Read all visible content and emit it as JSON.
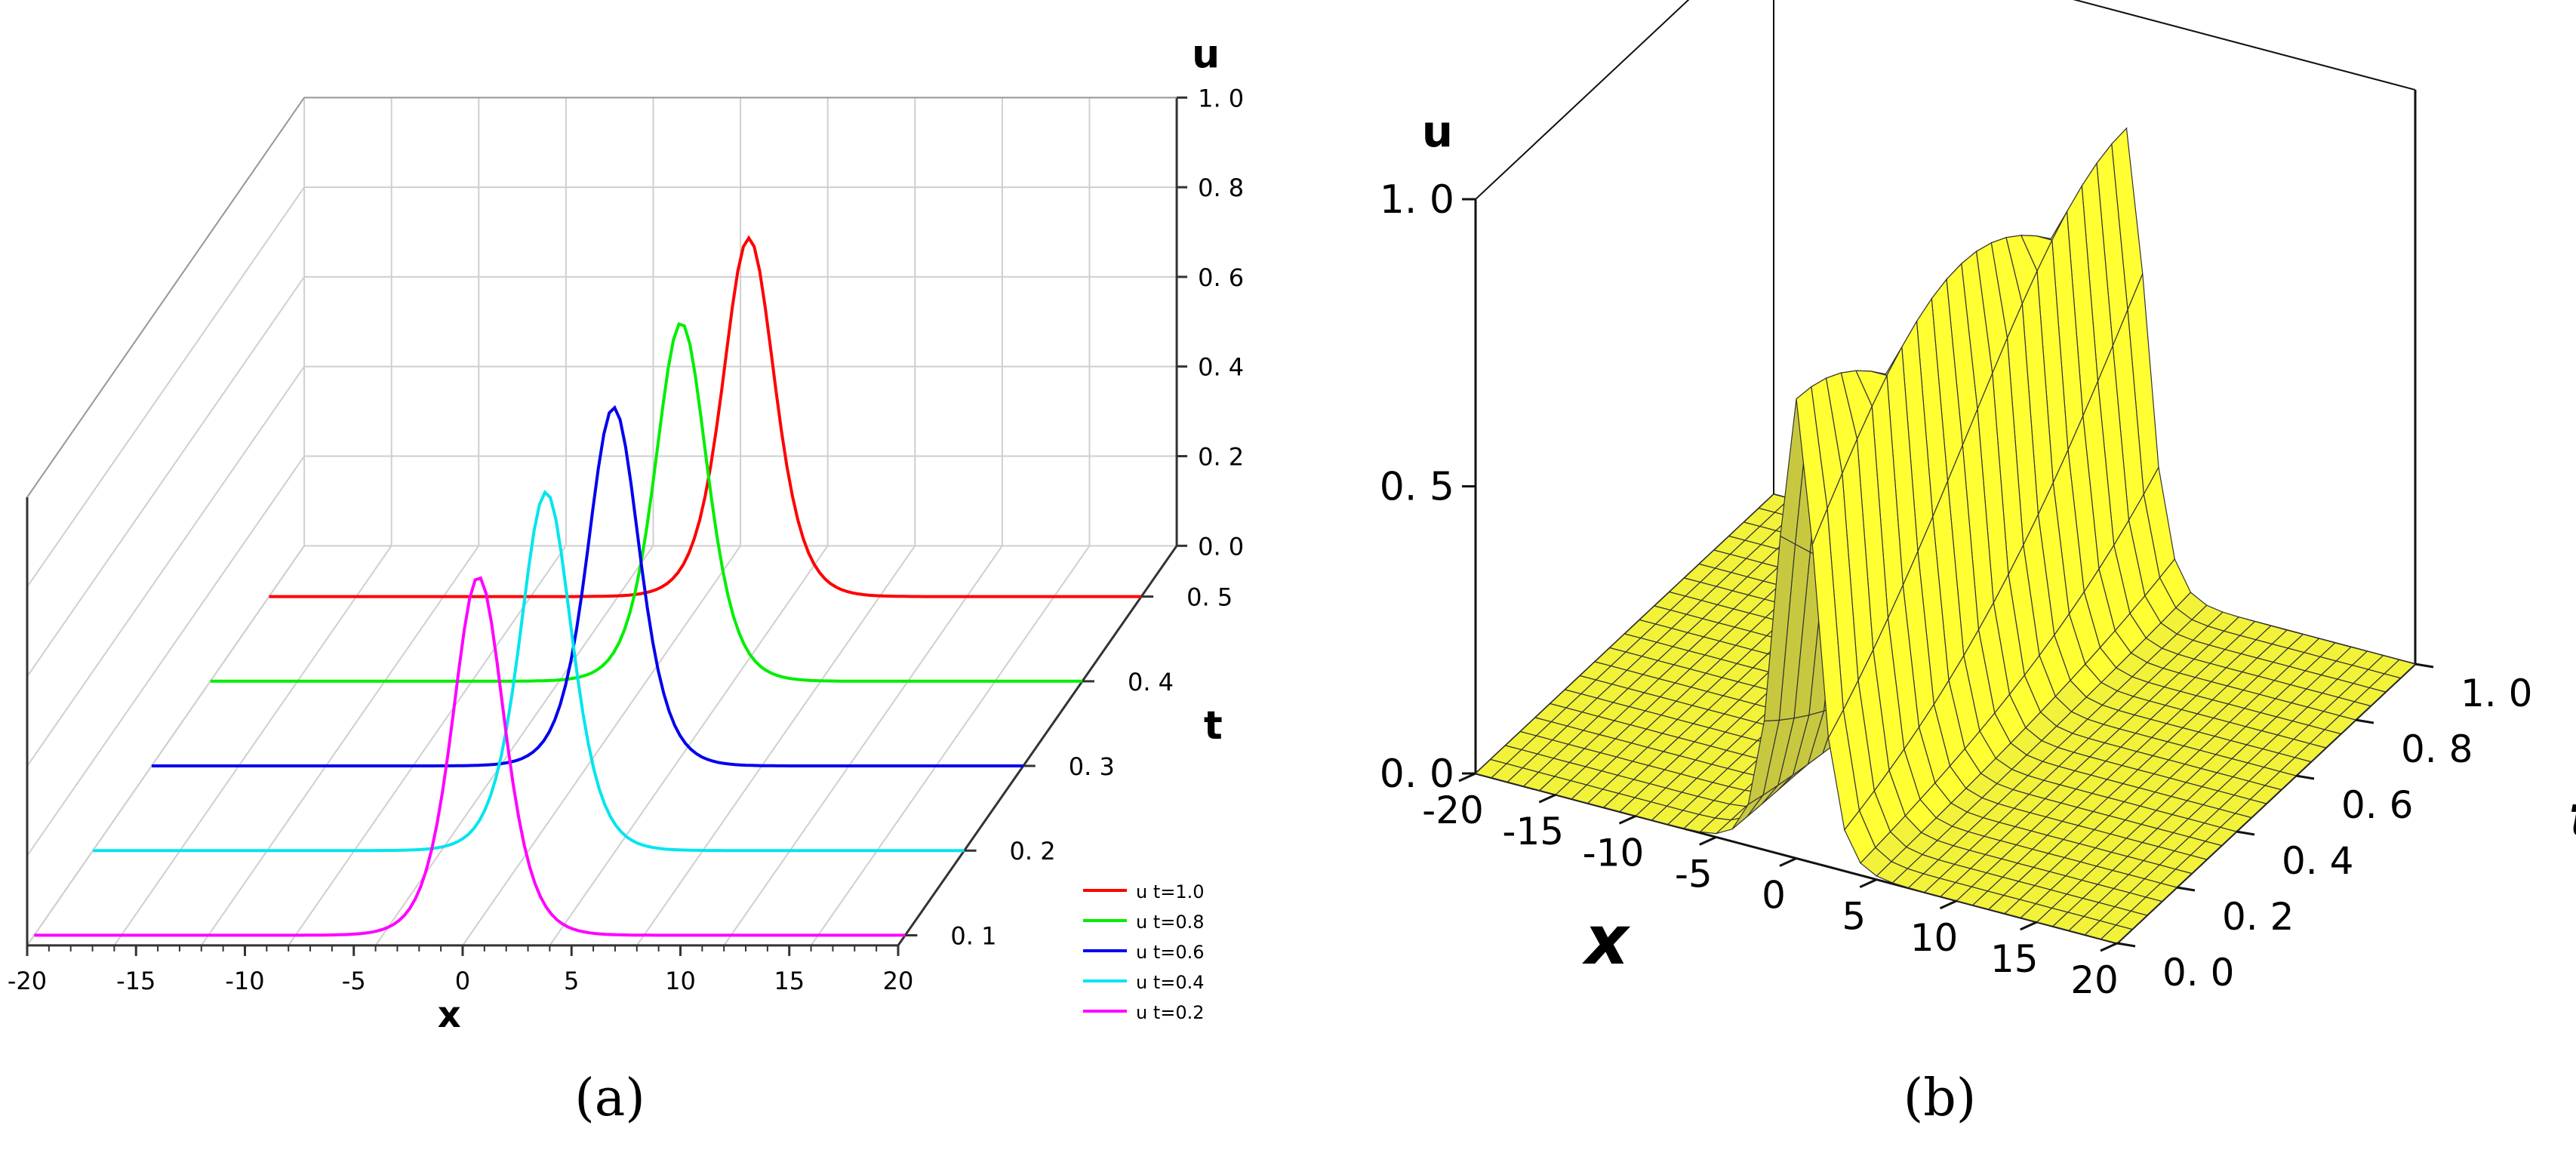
{
  "panel_labels": {
    "a": "(a)",
    "b": "(b)"
  },
  "chart_data": [
    {
      "panel": "a",
      "type": "line",
      "xlabel": "x",
      "ylabel": "t",
      "zlabel": "u",
      "xlim": [
        -20,
        20
      ],
      "zlim": [
        0,
        1.0
      ],
      "x_ticks": [
        -20,
        -15,
        -10,
        -5,
        0,
        5,
        10,
        15,
        20
      ],
      "x_tick_labels": [
        "-20",
        "-15",
        "-10",
        "-5",
        "0",
        "5",
        "10",
        "15",
        "20"
      ],
      "t_ticks": [
        0.1,
        0.2,
        0.3,
        0.4,
        0.5
      ],
      "t_tick_labels": [
        "0. 1",
        "0. 2",
        "0. 3",
        "0. 4",
        "0. 5"
      ],
      "z_ticks": [
        0,
        0.2,
        0.4,
        0.6,
        0.8,
        1.0
      ],
      "z_tick_labels": [
        "0. 0",
        "0. 2",
        "0. 4",
        "0. 6",
        "0. 8",
        "1. 0"
      ],
      "grid": true,
      "legend": "bottom-right",
      "series": [
        {
          "name": "u t=1.0",
          "t": 0.5,
          "peak_x": 2,
          "peak_u": 0.8,
          "color": "#ff0000"
        },
        {
          "name": "u t=0.8",
          "t": 0.4,
          "peak_x": 1.6,
          "peak_u": 0.8,
          "color": "#00ee00"
        },
        {
          "name": "u t=0.6",
          "t": 0.3,
          "peak_x": 1.2,
          "peak_u": 0.8,
          "color": "#0000ee"
        },
        {
          "name": "u t=0.4",
          "t": 0.2,
          "peak_x": 0.8,
          "peak_u": 0.8,
          "color": "#00e5ee"
        },
        {
          "name": "u t=0.2",
          "t": 0.1,
          "peak_x": 0.4,
          "peak_u": 0.8,
          "color": "#ff00ff"
        }
      ]
    },
    {
      "panel": "b",
      "type": "surface",
      "xlabel": "x",
      "ylabel": "t",
      "zlabel": "u",
      "xlim": [
        -20,
        20
      ],
      "tlim": [
        0,
        1.0
      ],
      "zlim": [
        0,
        1.0
      ],
      "x_ticks": [
        -20,
        -15,
        -10,
        -5,
        0,
        5,
        10,
        15,
        20
      ],
      "x_tick_labels": [
        "-20",
        "-15",
        "-10",
        "-5",
        "0",
        "5",
        "10",
        "15",
        "20"
      ],
      "t_ticks": [
        0,
        0.2,
        0.4,
        0.6,
        0.8,
        1.0
      ],
      "t_tick_labels": [
        "0. 0",
        "0. 2",
        "0. 4",
        "0. 6",
        "0. 8",
        "1. 0"
      ],
      "z_ticks": [
        0,
        0.5,
        1.0
      ],
      "z_tick_labels": [
        "0. 0",
        "0. 5",
        "1. 0"
      ],
      "peak_u": 0.8,
      "peak_x_start": 0,
      "peak_x_end": 2,
      "surface_color": "#ffff33"
    }
  ]
}
